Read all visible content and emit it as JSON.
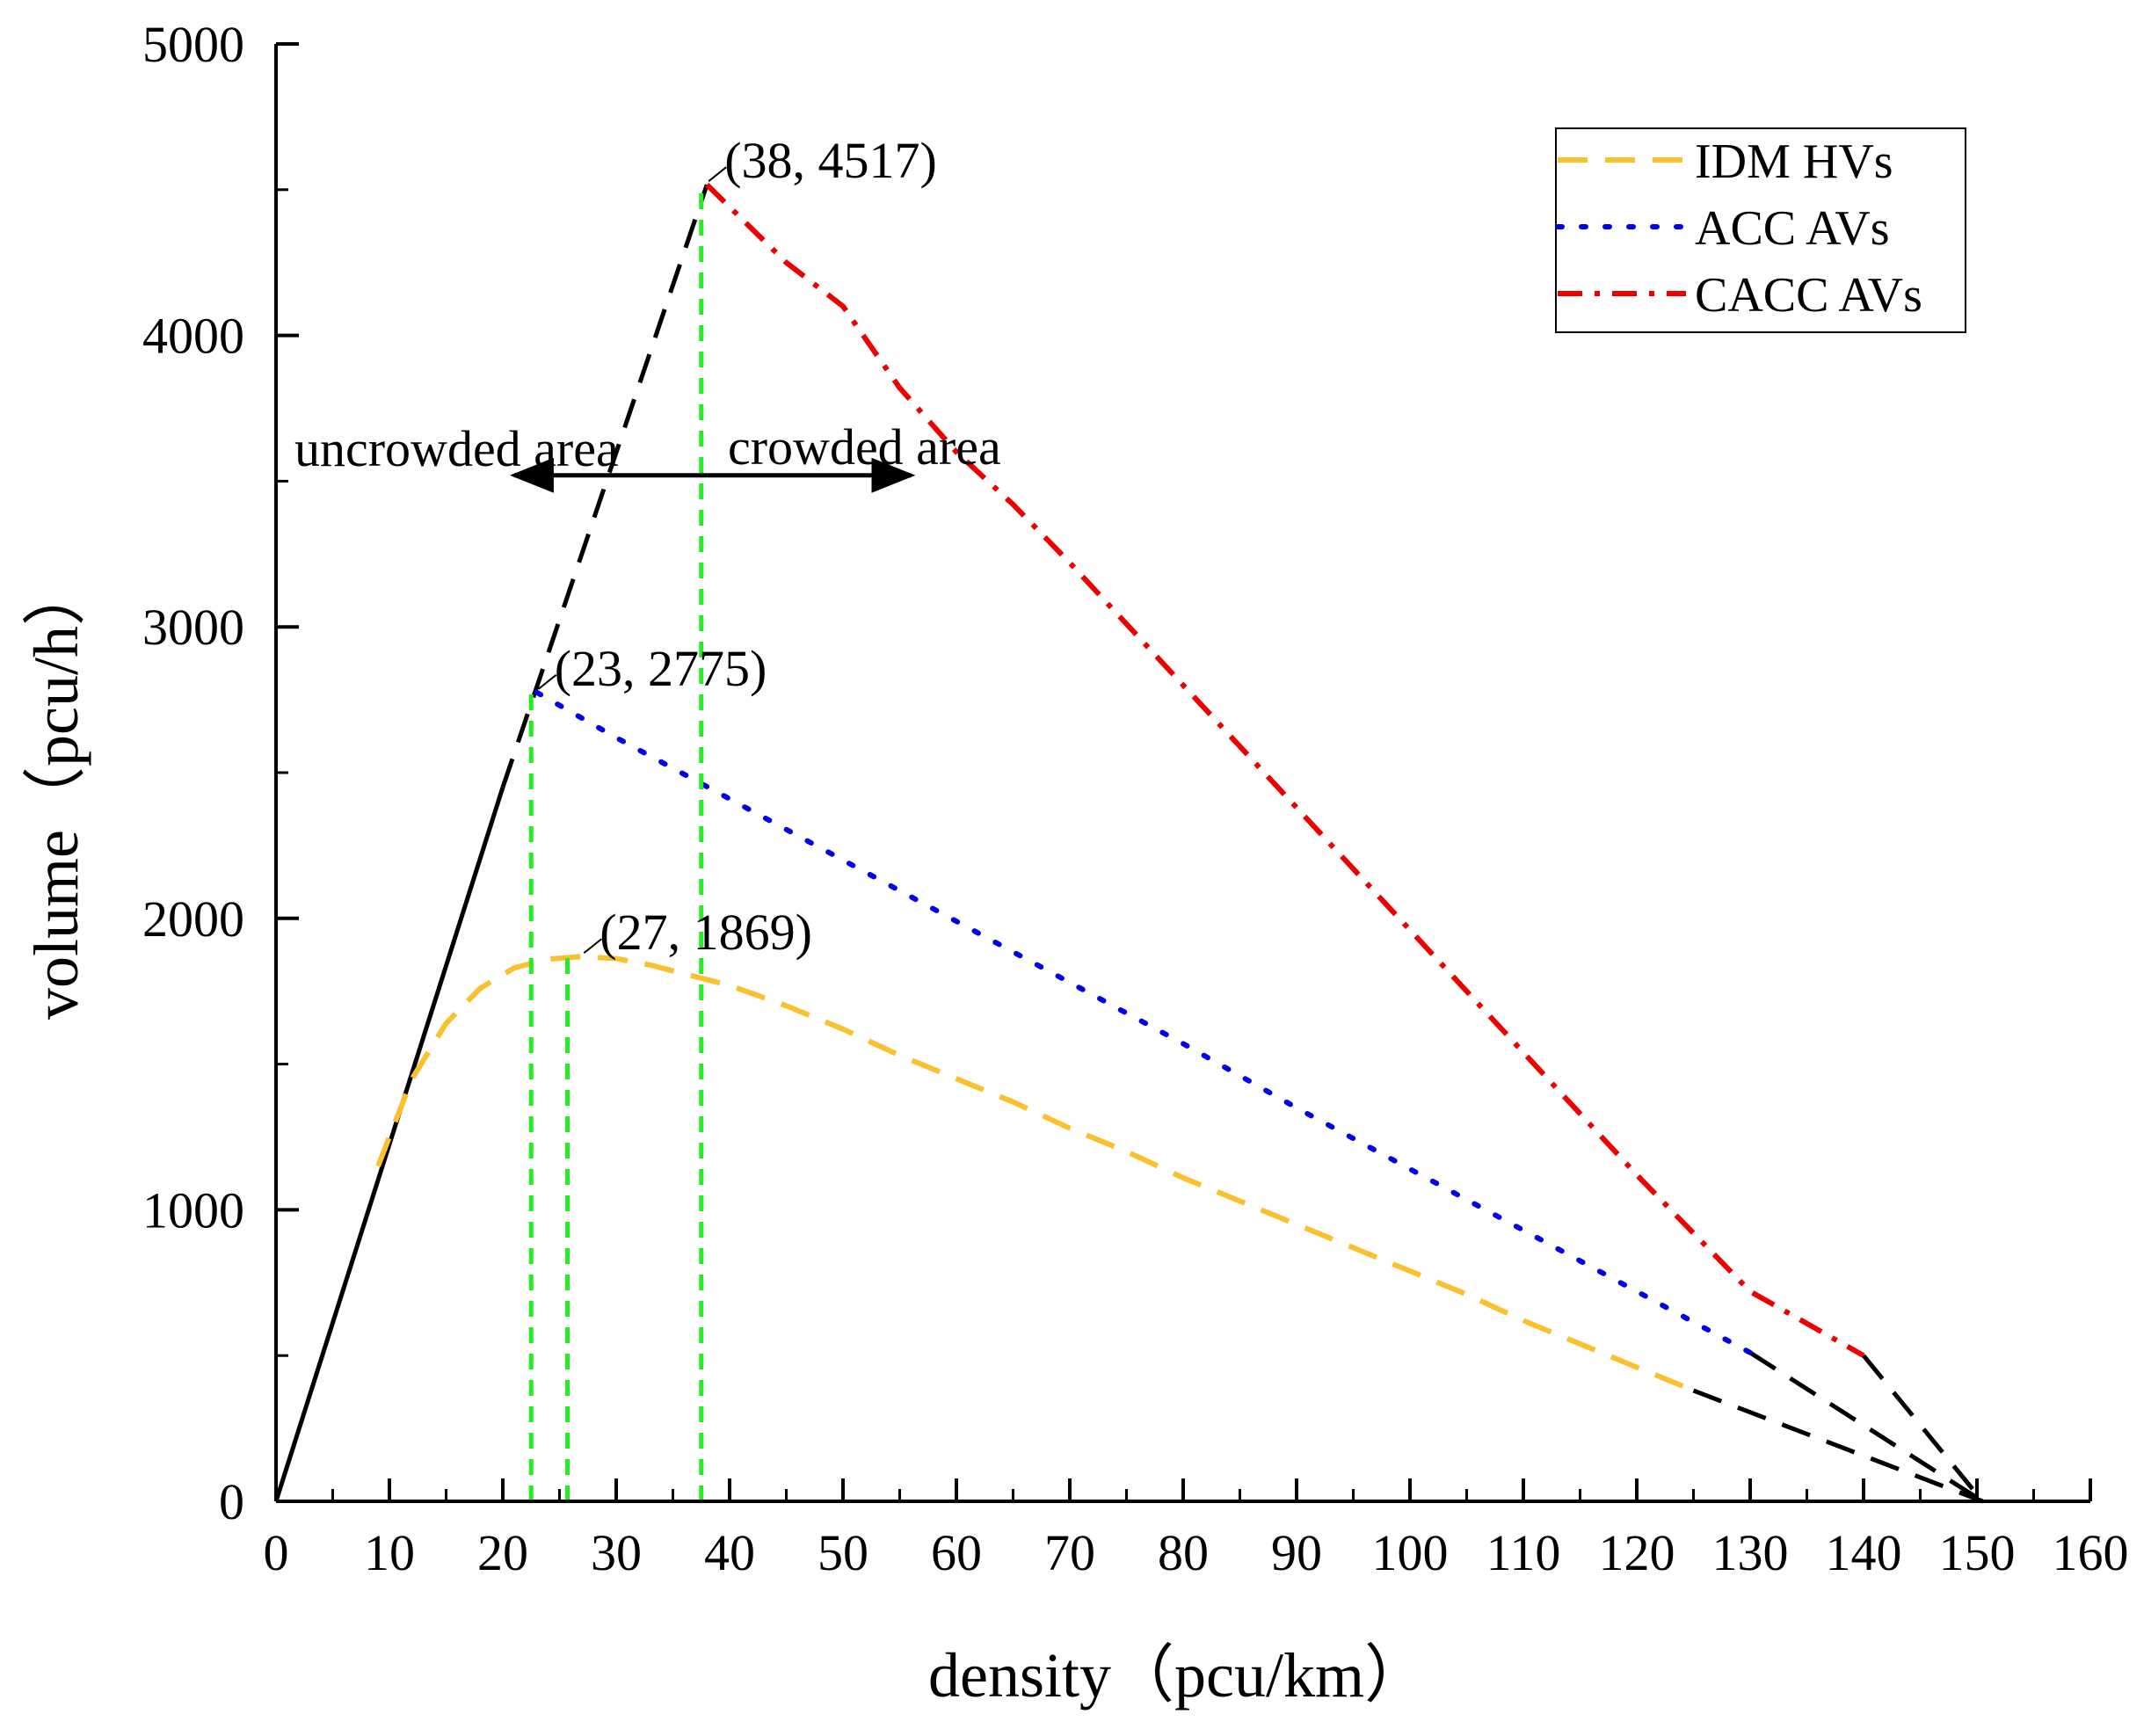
{
  "colors": {
    "idm": "#FBC02D",
    "acc": "#0000EE",
    "cacc": "#EE0000",
    "black": "#000000",
    "green": "#22EE22"
  },
  "chart_data": {
    "type": "line",
    "xlabel": "density（pcu/km）",
    "ylabel": "volume（pcu/h）",
    "xlim": [
      0,
      160
    ],
    "ylim": [
      0,
      5000
    ],
    "x_ticks": [
      0,
      10,
      20,
      30,
      40,
      50,
      60,
      70,
      80,
      90,
      100,
      110,
      120,
      130,
      140,
      150,
      160
    ],
    "y_ticks": [
      0,
      1000,
      2000,
      3000,
      4000,
      5000
    ],
    "legend_position": "top-right",
    "series": [
      {
        "name": "IDM HVs",
        "style": "dashed",
        "color": "#FBC02D",
        "x": [
          9,
          12,
          15,
          18,
          21,
          24,
          27,
          30,
          33,
          36,
          40,
          45,
          50,
          55,
          60,
          65,
          70,
          75,
          80,
          85,
          90,
          95,
          100,
          105,
          110,
          115,
          120,
          125
        ],
        "y": [
          1150,
          1450,
          1640,
          1760,
          1830,
          1860,
          1869,
          1862,
          1840,
          1810,
          1770,
          1700,
          1620,
          1530,
          1450,
          1370,
          1280,
          1200,
          1110,
          1030,
          950,
          870,
          790,
          710,
          620,
          540,
          460,
          380
        ]
      },
      {
        "name": "ACC AVs",
        "style": "dotted",
        "color": "#0000EE",
        "x": [
          23,
          30,
          40,
          50,
          60,
          70,
          80,
          90,
          100,
          110,
          120,
          130
        ],
        "y": [
          2775,
          2620,
          2410,
          2200,
          1990,
          1780,
          1570,
          1350,
          1140,
          930,
          720,
          510
        ]
      },
      {
        "name": "CACC AVs",
        "style": "dash-dot",
        "color": "#EE0000",
        "x": [
          38,
          45,
          50,
          55,
          60,
          65,
          70,
          80,
          90,
          100,
          110,
          120,
          130,
          140
        ],
        "y": [
          4517,
          4250,
          4100,
          3820,
          3600,
          3420,
          3220,
          2800,
          2380,
          1960,
          1540,
          1120,
          720,
          500
        ]
      }
    ],
    "extensions": [
      {
        "style": "solid",
        "color": "#000000",
        "x": [
          0,
          20
        ],
        "y": [
          0,
          2450
        ]
      },
      {
        "style": "dashed",
        "color": "#000000",
        "x": [
          20,
          38
        ],
        "y": [
          2450,
          4517
        ]
      },
      {
        "style": "dashed",
        "color": "#000000",
        "x": [
          125,
          150.5
        ],
        "y": [
          380,
          0
        ]
      },
      {
        "style": "dashed",
        "color": "#000000",
        "x": [
          130,
          150.5
        ],
        "y": [
          510,
          0
        ]
      },
      {
        "style": "dashed",
        "color": "#000000",
        "x": [
          140,
          150.5
        ],
        "y": [
          500,
          0
        ]
      }
    ],
    "vlines": [
      {
        "x": 22.5,
        "y_top": 2775,
        "color": "#22EE22"
      },
      {
        "x": 25.7,
        "y_top": 1869,
        "color": "#22EE22"
      },
      {
        "x": 37.5,
        "y_top": 4517,
        "color": "#22EE22"
      }
    ],
    "peak_labels": [
      {
        "text": "(38, 4517)",
        "x": 38,
        "y": 4517
      },
      {
        "text": "(23, 2775)",
        "x": 23,
        "y": 2775
      },
      {
        "text": "(27, 1869)",
        "x": 27,
        "y": 1869
      }
    ],
    "annotations": {
      "uncrowded": "uncrowded area",
      "crowded": "crowded area",
      "arrow": {
        "y": 3520,
        "x_from": 21,
        "x_mid": 38,
        "x_to": 56
      }
    }
  }
}
